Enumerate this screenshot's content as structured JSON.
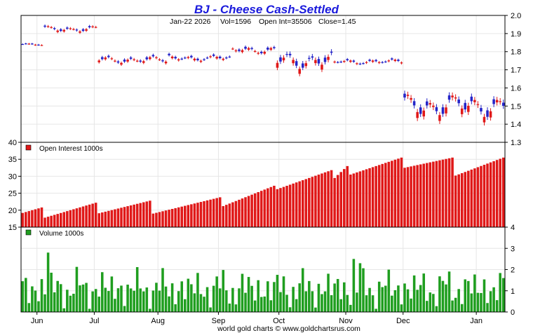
{
  "colors": {
    "title": "#1a1adc",
    "up": "#2424c8",
    "down": "#e01818",
    "open_interest": "#e01818",
    "volume": "#1f9e1f",
    "grid": "#e6e6e6",
    "axis": "#000000"
  },
  "chart_data": [
    {
      "type": "candlestick",
      "title": "BJ - Cheese Cash-Settled",
      "info": {
        "date": "Jan-22  2026",
        "vol": "Vol=1596",
        "open_int": "Open Int=35506",
        "close": "Close=1.45"
      },
      "ylim": [
        1.3,
        2.0
      ],
      "yticks": [
        1.3,
        1.4,
        1.5,
        1.6,
        1.7,
        1.8,
        1.9,
        2.0
      ],
      "ytick_labels": [
        "1.3",
        "1.4",
        "1.5",
        "1.6",
        "1.7",
        "1.8",
        "1.9",
        "2.0"
      ],
      "axis_side": "right",
      "segments": [
        {
          "start": 0,
          "end": 7,
          "level": 1.84,
          "amp": 0.003
        },
        {
          "start": 7,
          "end": 24,
          "level": 1.925,
          "amp": 0.01
        },
        {
          "start": 24,
          "end": 46,
          "level": 1.755,
          "amp": 0.012
        },
        {
          "start": 46,
          "end": 66,
          "level": 1.765,
          "amp": 0.01
        },
        {
          "start": 66,
          "end": 80,
          "level": 1.81,
          "amp": 0.012
        },
        {
          "start": 80,
          "end": 98,
          "level": 1.75,
          "amp": 0.03
        },
        {
          "start": 98,
          "end": 120,
          "level": 1.745,
          "amp": 0.008
        },
        {
          "start": 120,
          "end": 152,
          "level": 1.5,
          "amp": 0.04
        }
      ]
    },
    {
      "type": "bar",
      "series_name": "Open Interest  1000s",
      "ylim": [
        15,
        40
      ],
      "yticks": [
        15,
        20,
        25,
        30,
        35,
        40
      ],
      "ytick_labels": [
        "15",
        "20",
        "25",
        "30",
        "35",
        "40"
      ],
      "axis_side": "left",
      "segments": [
        {
          "start": 0,
          "end": 7,
          "from": 19.2,
          "to": 20.8
        },
        {
          "start": 7,
          "end": 24,
          "from": 17.8,
          "to": 22.2
        },
        {
          "start": 24,
          "end": 41,
          "from": 19.1,
          "to": 22.8
        },
        {
          "start": 41,
          "end": 63,
          "from": 19.0,
          "to": 23.8
        },
        {
          "start": 63,
          "end": 80,
          "from": 21.2,
          "to": 27.2
        },
        {
          "start": 80,
          "end": 98,
          "from": 26.2,
          "to": 31.8
        },
        {
          "start": 98,
          "end": 103,
          "from": 29.5,
          "to": 33.0
        },
        {
          "start": 103,
          "end": 120,
          "from": 30.5,
          "to": 35.5
        },
        {
          "start": 120,
          "end": 136,
          "from": 32.5,
          "to": 35.5
        },
        {
          "start": 136,
          "end": 152,
          "from": 30.2,
          "to": 35.5
        }
      ]
    },
    {
      "type": "bar",
      "series_name": "Volume  1000s",
      "ylim": [
        0,
        4
      ],
      "yticks": [
        0,
        1,
        2,
        3,
        4
      ],
      "ytick_labels": [
        "0",
        "1",
        "2",
        "3",
        "4"
      ],
      "axis_side": "right",
      "base_level": 1.1,
      "spikes": [
        {
          "index": 8,
          "value": 2.8
        },
        {
          "index": 104,
          "value": 2.5
        },
        {
          "index": 106,
          "value": 2.3
        }
      ],
      "last_value": 1.6
    }
  ],
  "x_axis": {
    "n_bars": 152,
    "months": [
      {
        "label": "Jun",
        "index": 5
      },
      {
        "label": "Jul",
        "index": 23
      },
      {
        "label": "Aug",
        "index": 43
      },
      {
        "label": "Sep",
        "index": 62
      },
      {
        "label": "Oct",
        "index": 81
      },
      {
        "label": "Nov",
        "index": 102
      },
      {
        "label": "Dec",
        "index": 120
      },
      {
        "label": "Jan",
        "index": 143
      }
    ]
  },
  "footer": "world gold charts © www.goldchartsrus.com"
}
